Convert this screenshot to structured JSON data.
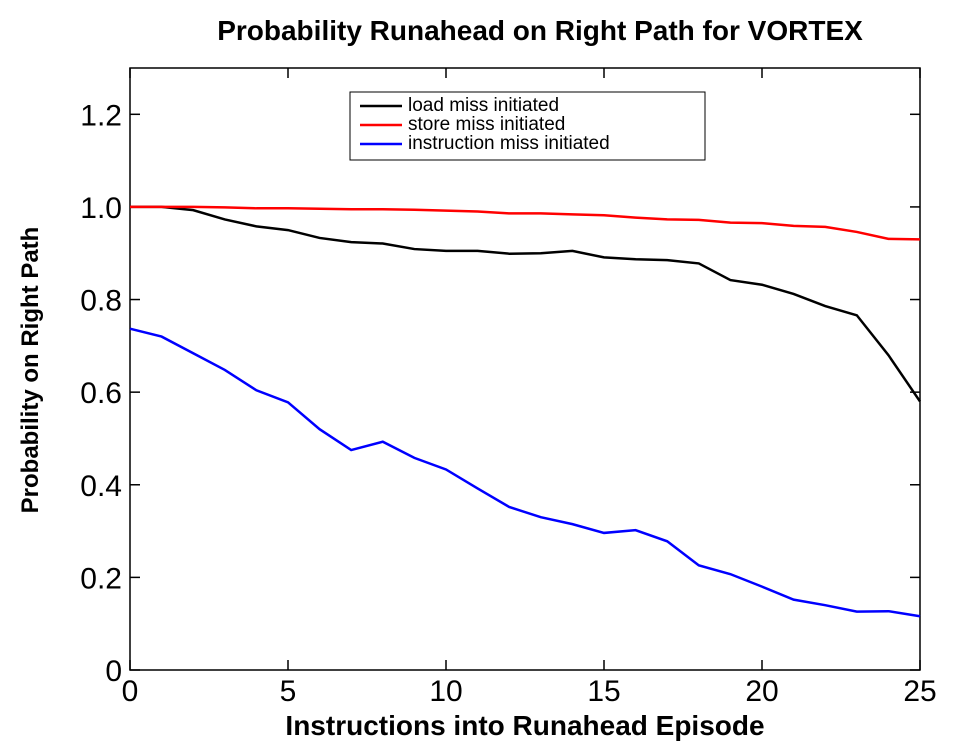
{
  "chart_data": {
    "type": "line",
    "title": "Probability Runahead on Right Path for VORTEX",
    "x_label": "Instructions into Runahead Episode",
    "y_label": "Probability on Right Path",
    "x": [
      0,
      1,
      2,
      3,
      4,
      5,
      6,
      7,
      8,
      9,
      10,
      11,
      12,
      13,
      14,
      15,
      16,
      17,
      18,
      19,
      20,
      21,
      22,
      23,
      24,
      25
    ],
    "series": [
      {
        "name": "load miss initiated",
        "color": "#000000",
        "values": [
          1.0,
          1.0,
          0.993,
          0.973,
          0.958,
          0.95,
          0.933,
          0.924,
          0.921,
          0.909,
          0.905,
          0.905,
          0.899,
          0.9,
          0.905,
          0.891,
          0.887,
          0.885,
          0.878,
          0.842,
          0.832,
          0.812,
          0.786,
          0.766,
          0.68,
          0.58
        ]
      },
      {
        "name": "store miss initiated",
        "color": "#ff0000",
        "values": [
          1.0,
          1.0,
          1.0,
          0.999,
          0.997,
          0.997,
          0.996,
          0.995,
          0.995,
          0.994,
          0.992,
          0.99,
          0.986,
          0.986,
          0.984,
          0.982,
          0.977,
          0.973,
          0.972,
          0.966,
          0.965,
          0.959,
          0.957,
          0.946,
          0.931,
          0.93
        ]
      },
      {
        "name": "instruction miss initiated",
        "color": "#0000ff",
        "values": [
          0.737,
          0.72,
          0.684,
          0.648,
          0.604,
          0.578,
          0.52,
          0.475,
          0.493,
          0.458,
          0.433,
          0.392,
          0.352,
          0.33,
          0.315,
          0.296,
          0.302,
          0.278,
          0.226,
          0.207,
          0.18,
          0.152,
          0.14,
          0.126,
          0.127,
          0.116
        ]
      }
    ],
    "xlim": [
      0,
      25
    ],
    "xticks": [
      0,
      5,
      10,
      15,
      20,
      25
    ],
    "ylim": [
      0,
      1.3
    ],
    "yticks": [
      0,
      0.2,
      0.4,
      0.6,
      0.8,
      {
        "value": 1,
        "label": "1.0"
      },
      1.2
    ],
    "legend": "top"
  }
}
